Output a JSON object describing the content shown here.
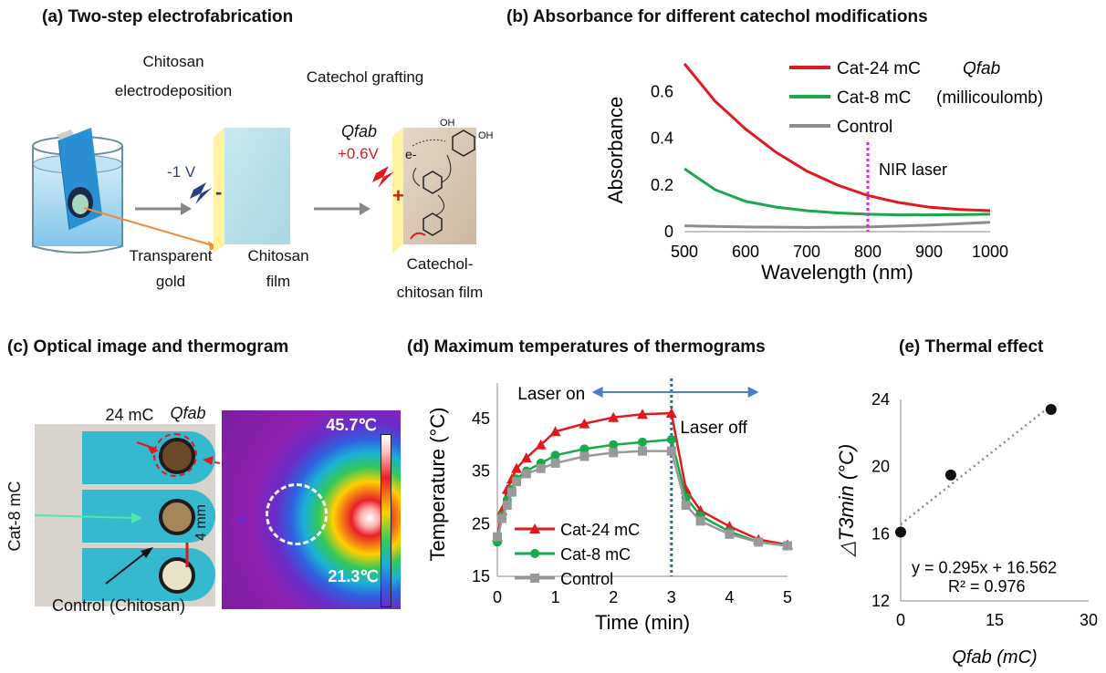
{
  "panels": {
    "a_title": "(a) Two-step electrofabrication",
    "b_title": "(b) Absorbance for different catechol modifications",
    "c_title": "(c) Optical image and thermogram",
    "d_title": "(d) Maximum temperatures of thermograms",
    "e_title": "(e) Thermal effect"
  },
  "panel_a": {
    "step1_line1": "Chitosan",
    "step1_line2": "electrodeposition",
    "step2": "Catechol grafting",
    "voltage1": "-1 V",
    "voltage2": "+0.6V",
    "qfab": "Qfab",
    "electron": "e-",
    "gold_line1": "Transparent",
    "gold_line2": "gold",
    "chitosan_film_line1": "Chitosan",
    "chitosan_film_line2": "film",
    "cat_film_line1": "Catechol-",
    "cat_film_line2": "chitosan film",
    "oh": "OH",
    "minus": "-",
    "plus": "+"
  },
  "panel_c": {
    "label_24": "24 mC",
    "qfab": "Qfab",
    "label_8": "Cat-8 mC",
    "scale": "4 mm",
    "control": "Control (Chitosan)",
    "tmax": "45.7℃",
    "tmin": "21.3℃"
  },
  "chart_data": [
    {
      "type": "line",
      "panel": "b",
      "xlabel": "Wavelength (nm)",
      "ylabel": "Absorbance",
      "xlim": [
        500,
        1000
      ],
      "ylim": [
        0,
        0.7
      ],
      "xticks": [
        "500",
        "600",
        "700",
        "800",
        "900",
        "1000"
      ],
      "yticks": [
        "0",
        "0.2",
        "0.4",
        "0.6"
      ],
      "series": [
        {
          "name": "Cat-24 mC",
          "color": "#e0191f",
          "x": [
            500,
            550,
            600,
            650,
            700,
            750,
            800,
            850,
            900,
            950,
            1000
          ],
          "values": [
            0.72,
            0.56,
            0.44,
            0.34,
            0.26,
            0.2,
            0.155,
            0.125,
            0.105,
            0.095,
            0.09
          ]
        },
        {
          "name": "Cat-8 mC",
          "color": "#1aa84b",
          "x": [
            500,
            550,
            600,
            650,
            700,
            750,
            800,
            850,
            900,
            950,
            1000
          ],
          "values": [
            0.27,
            0.18,
            0.13,
            0.105,
            0.09,
            0.08,
            0.075,
            0.072,
            0.072,
            0.073,
            0.075
          ]
        },
        {
          "name": "Control",
          "color": "#8c8c8c",
          "x": [
            500,
            600,
            700,
            800,
            900,
            1000
          ],
          "values": [
            0.025,
            0.02,
            0.018,
            0.02,
            0.028,
            0.04
          ]
        }
      ],
      "legend_note_qfab": "Qfab",
      "legend_note_unit": "(millicoulomb)",
      "annotation": "NIR laser",
      "marker_x": 800
    },
    {
      "type": "line",
      "panel": "d",
      "xlabel": "Time (min)",
      "ylabel": "Temperature (°C)",
      "xlim": [
        0,
        5
      ],
      "ylim": [
        15,
        50
      ],
      "xticks": [
        "0",
        "1",
        "2",
        "3",
        "4",
        "5"
      ],
      "yticks": [
        "15",
        "25",
        "35",
        "45"
      ],
      "x": [
        0,
        0.08,
        0.17,
        0.25,
        0.33,
        0.5,
        0.75,
        1.0,
        1.5,
        2.0,
        2.5,
        3.0,
        3.25,
        3.5,
        4.0,
        4.5,
        5.0
      ],
      "series": [
        {
          "name": "Cat-24 mC",
          "color": "#e0191f",
          "marker": "triangle",
          "values": [
            22.5,
            27.5,
            31.5,
            33.5,
            35.5,
            37.5,
            40.0,
            42.5,
            44.0,
            45.2,
            45.8,
            46.0,
            31.5,
            27.5,
            24.5,
            22.0,
            21.0
          ]
        },
        {
          "name": "Cat-8 mC",
          "color": "#1aa84b",
          "marker": "circle",
          "values": [
            21.5,
            26.5,
            29.5,
            31.5,
            33.5,
            35.0,
            36.5,
            38.0,
            39.2,
            40.0,
            40.5,
            41.0,
            30.0,
            26.5,
            23.5,
            21.5,
            20.8
          ]
        },
        {
          "name": "Control",
          "color": "#999999",
          "marker": "square",
          "values": [
            22.5,
            26.0,
            28.5,
            31.0,
            33.0,
            34.5,
            35.5,
            36.5,
            37.8,
            38.5,
            38.8,
            38.8,
            28.5,
            25.5,
            23.0,
            21.5,
            20.8
          ]
        }
      ],
      "annotations": {
        "laser_on": "Laser on",
        "laser_off": "Laser off"
      },
      "marker_x": 3
    },
    {
      "type": "scatter",
      "panel": "e",
      "xlabel": "Qfab (mC)",
      "ylabel": "△T3min (°C)",
      "xlim": [
        0,
        30
      ],
      "ylim": [
        12,
        24
      ],
      "xticks": [
        "0",
        "15",
        "30"
      ],
      "yticks": [
        "12",
        "16",
        "20",
        "24"
      ],
      "x": [
        0,
        8,
        24
      ],
      "values": [
        16.1,
        19.5,
        23.4
      ],
      "trendline": {
        "slope": 0.295,
        "intercept": 16.562,
        "equation": "y = 0.295x + 16.562",
        "r2": "R² = 0.976"
      }
    }
  ]
}
